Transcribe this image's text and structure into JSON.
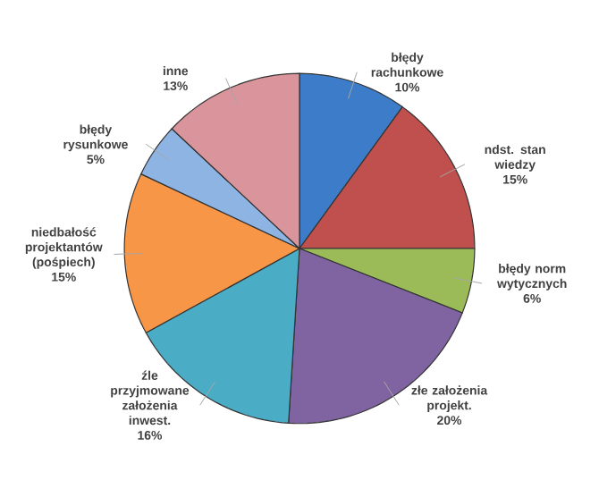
{
  "chart_data": {
    "type": "pie",
    "categories": [
      "błędy rachunkowe",
      "ndst. stan wiedzy",
      "błędy norm wytycznych",
      "złe założenia projekt.",
      "źle przyjmowane założenia inwest.",
      "niedbałość projektantów (pośpiech)",
      "błędy rysunkowe",
      "inne"
    ],
    "values": [
      10,
      15,
      6,
      20,
      16,
      15,
      5,
      13
    ],
    "value_labels": [
      "10%",
      "15%",
      "6%",
      "20%",
      "16%",
      "15%",
      "5%",
      "13%"
    ],
    "colors": [
      "#3d7cc9",
      "#c0504d",
      "#9bbb59",
      "#8064a2",
      "#4bacc6",
      "#f79646",
      "#8eb4e3",
      "#d9959b"
    ]
  }
}
